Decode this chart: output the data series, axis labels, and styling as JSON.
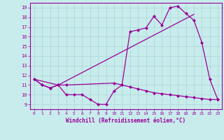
{
  "xlabel": "Windchill (Refroidissement éolien,°C)",
  "bg_color": "#c8ecec",
  "grid_color": "#b0d8d8",
  "line_color": "#990099",
  "xlim": [
    -0.5,
    23.5
  ],
  "ylim": [
    8.5,
    19.5
  ],
  "xticks": [
    0,
    1,
    2,
    3,
    4,
    5,
    6,
    7,
    8,
    9,
    10,
    11,
    12,
    13,
    14,
    15,
    16,
    17,
    18,
    19,
    20,
    21,
    22,
    23
  ],
  "yticks": [
    9,
    10,
    11,
    12,
    13,
    14,
    15,
    16,
    17,
    18,
    19
  ],
  "line1_x": [
    0,
    1,
    2,
    3,
    4,
    10,
    11,
    12,
    13,
    14,
    15,
    16,
    17,
    18,
    19,
    20,
    21,
    22,
    23
  ],
  "line1_y": [
    11.6,
    11.0,
    10.7,
    11.0,
    11.0,
    11.2,
    11.0,
    16.5,
    16.7,
    16.9,
    18.1,
    17.2,
    19.0,
    19.15,
    18.4,
    17.7,
    15.4,
    11.6,
    9.5
  ],
  "line2_x": [
    0,
    3,
    20
  ],
  "line2_y": [
    11.6,
    11.0,
    18.3
  ],
  "line3_x": [
    0,
    1,
    2,
    3,
    4,
    5,
    6,
    7,
    8,
    9,
    10,
    11,
    12,
    13,
    14,
    15,
    16,
    17,
    18,
    19,
    20,
    21,
    22,
    23
  ],
  "line3_y": [
    11.6,
    11.0,
    10.7,
    11.0,
    10.0,
    10.0,
    10.0,
    9.5,
    9.0,
    9.0,
    10.4,
    11.0,
    10.8,
    10.6,
    10.4,
    10.2,
    10.1,
    10.0,
    9.9,
    9.8,
    9.7,
    9.6,
    9.5,
    9.5
  ]
}
